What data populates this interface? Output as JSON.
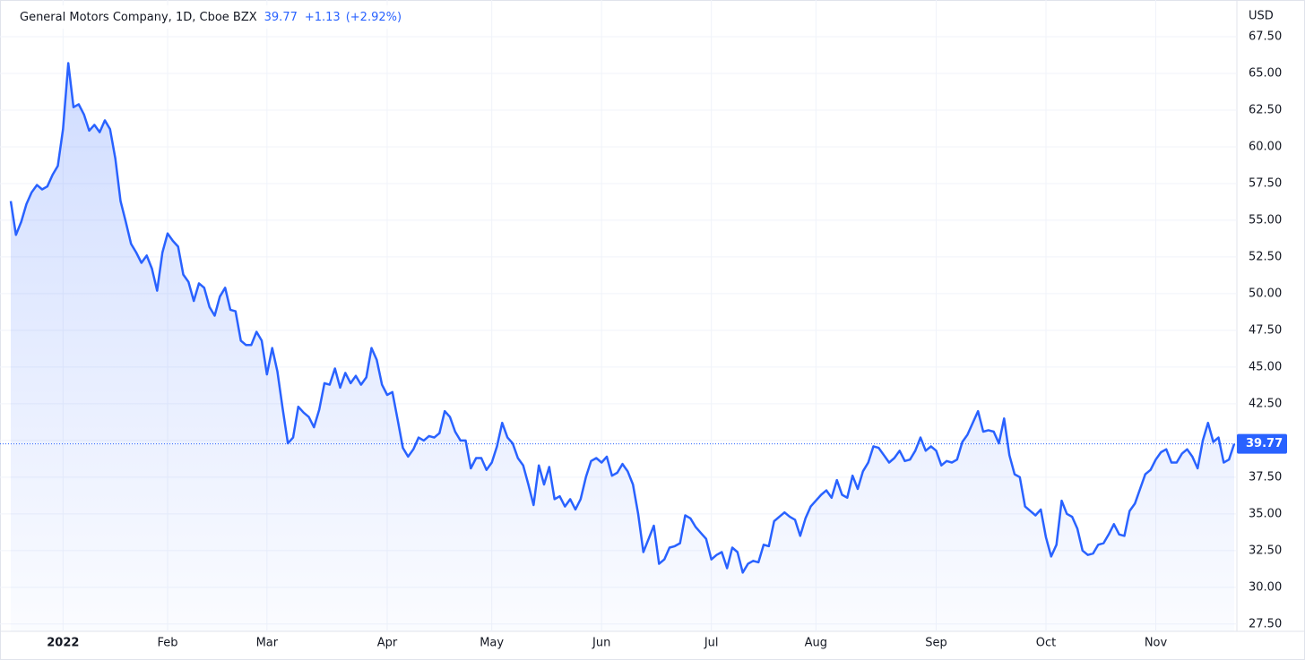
{
  "header": {
    "title": "General Motors Company, 1D, Cboe BZX",
    "price": "39.77",
    "change": "+1.13",
    "change_pct": "(+2.92%)",
    "currency": "USD"
  },
  "chart_data": {
    "type": "area",
    "color": "#2962ff",
    "grid": true,
    "categories": [
      null,
      null,
      null,
      null,
      null,
      null,
      null,
      null,
      null,
      null,
      "2022",
      null,
      null,
      null,
      null,
      null,
      null,
      null,
      null,
      null,
      null,
      null,
      null,
      null,
      null,
      null,
      null,
      null,
      null,
      null,
      "Feb",
      null,
      null,
      null,
      null,
      null,
      null,
      null,
      null,
      null,
      null,
      null,
      null,
      null,
      null,
      null,
      null,
      null,
      null,
      "Mar",
      null,
      null,
      null,
      null,
      null,
      null,
      null,
      null,
      null,
      null,
      null,
      null,
      null,
      null,
      null,
      null,
      null,
      null,
      null,
      null,
      null,
      null,
      "Apr",
      null,
      null,
      null,
      null,
      null,
      null,
      null,
      null,
      null,
      null,
      null,
      null,
      null,
      null,
      null,
      null,
      null,
      null,
      null,
      "May",
      null,
      null,
      null,
      null,
      null,
      null,
      null,
      null,
      null,
      null,
      null,
      null,
      null,
      null,
      null,
      null,
      null,
      null,
      null,
      null,
      "Jun",
      null,
      null,
      null,
      null,
      null,
      null,
      null,
      null,
      null,
      null,
      null,
      null,
      null,
      null,
      null,
      null,
      null,
      null,
      null,
      null,
      "Jul",
      null,
      null,
      null,
      null,
      null,
      null,
      null,
      null,
      null,
      null,
      null,
      null,
      null,
      null,
      null,
      null,
      null,
      null,
      null,
      "Aug",
      null,
      null,
      null,
      null,
      null,
      null,
      null,
      null,
      null,
      null,
      null,
      null,
      null,
      null,
      null,
      null,
      null,
      null,
      null,
      null,
      null,
      null,
      "Sep",
      null,
      null,
      null,
      null,
      null,
      null,
      null,
      null,
      null,
      null,
      null,
      null,
      null,
      null,
      null,
      null,
      null,
      null,
      null,
      null,
      "Oct",
      null,
      null,
      null,
      null,
      null,
      null,
      null,
      null,
      null,
      null,
      null,
      null,
      null,
      null,
      null,
      null,
      null,
      null,
      null,
      null,
      "Nov",
      null,
      null,
      null,
      null,
      null,
      null,
      null,
      null,
      null,
      null,
      null,
      null,
      null,
      null,
      null
    ],
    "values": [
      56.3,
      54.0,
      54.9,
      56.1,
      56.9,
      57.4,
      57.1,
      57.3,
      58.1,
      58.7,
      61.2,
      65.7,
      62.7,
      62.9,
      62.2,
      61.1,
      61.5,
      61.0,
      61.8,
      61.2,
      59.2,
      56.3,
      54.9,
      53.4,
      52.8,
      52.1,
      52.6,
      51.7,
      50.2,
      52.8,
      54.1,
      53.6,
      53.2,
      51.3,
      50.8,
      49.5,
      50.7,
      50.4,
      49.1,
      48.5,
      49.8,
      50.4,
      48.9,
      48.8,
      46.8,
      46.5,
      46.5,
      47.4,
      46.8,
      44.5,
      46.3,
      44.7,
      42.2,
      39.8,
      40.2,
      42.3,
      41.9,
      41.6,
      40.9,
      42.1,
      43.9,
      43.8,
      44.9,
      43.6,
      44.6,
      43.9,
      44.4,
      43.8,
      44.3,
      46.3,
      45.5,
      43.8,
      43.1,
      43.3,
      41.4,
      39.5,
      38.9,
      39.4,
      40.2,
      40.0,
      40.3,
      40.2,
      40.5,
      42.0,
      41.6,
      40.6,
      40.0,
      40.0,
      38.1,
      38.8,
      38.8,
      38.0,
      38.5,
      39.6,
      41.2,
      40.2,
      39.8,
      38.8,
      38.3,
      37.0,
      35.6,
      38.3,
      37.0,
      38.2,
      36.0,
      36.2,
      35.5,
      36.0,
      35.3,
      36.0,
      37.5,
      38.6,
      38.8,
      38.5,
      38.9,
      37.6,
      37.8,
      38.4,
      37.9,
      37.0,
      35.0,
      32.4,
      33.3,
      34.2,
      31.6,
      31.9,
      32.7,
      32.8,
      33.0,
      34.9,
      34.7,
      34.1,
      33.7,
      33.3,
      31.9,
      32.2,
      32.4,
      31.3,
      32.7,
      32.4,
      31.0,
      31.6,
      31.8,
      31.7,
      32.9,
      32.8,
      34.5,
      34.8,
      35.1,
      34.8,
      34.6,
      33.5,
      34.7,
      35.5,
      35.9,
      36.3,
      36.6,
      36.1,
      37.3,
      36.3,
      36.1,
      37.6,
      36.7,
      37.9,
      38.5,
      39.6,
      39.5,
      39.0,
      38.5,
      38.8,
      39.3,
      38.6,
      38.7,
      39.3,
      40.2,
      39.3,
      39.6,
      39.3,
      38.3,
      38.6,
      38.5,
      38.7,
      39.9,
      40.4,
      41.2,
      42.0,
      40.6,
      40.7,
      40.6,
      39.8,
      41.5,
      39.0,
      37.7,
      37.5,
      35.5,
      35.2,
      34.9,
      35.3,
      33.4,
      32.1,
      32.9,
      35.9,
      35.0,
      34.8,
      34.0,
      32.5,
      32.2,
      32.3,
      32.9,
      33.0,
      33.6,
      34.3,
      33.6,
      33.5,
      35.2,
      35.7,
      36.7,
      37.7,
      38.0,
      38.7,
      39.2,
      39.4,
      38.5,
      38.5,
      39.1,
      39.4,
      38.9,
      38.1,
      40.0,
      41.2,
      39.9,
      40.2,
      38.5,
      38.7,
      39.77
    ],
    "ylim": [
      27,
      70
    ],
    "yticks": [
      {
        "value": 27.5,
        "label": "27.50"
      },
      {
        "value": 30,
        "label": "30.00"
      },
      {
        "value": 32.5,
        "label": "32.50"
      },
      {
        "value": 35,
        "label": "35.00"
      },
      {
        "value": 37.5,
        "label": "37.50"
      },
      {
        "value": 40,
        "label": "40.00"
      },
      {
        "value": 42.5,
        "label": "42.50"
      },
      {
        "value": 45,
        "label": "45.00"
      },
      {
        "value": 47.5,
        "label": "47.50"
      },
      {
        "value": 50,
        "label": "50.00"
      },
      {
        "value": 52.5,
        "label": "52.50"
      },
      {
        "value": 55,
        "label": "55.00"
      },
      {
        "value": 57.5,
        "label": "57.50"
      },
      {
        "value": 60,
        "label": "60.00"
      },
      {
        "value": 62.5,
        "label": "62.50"
      },
      {
        "value": 65,
        "label": "65.00"
      },
      {
        "value": 67.5,
        "label": "67.50"
      }
    ]
  }
}
